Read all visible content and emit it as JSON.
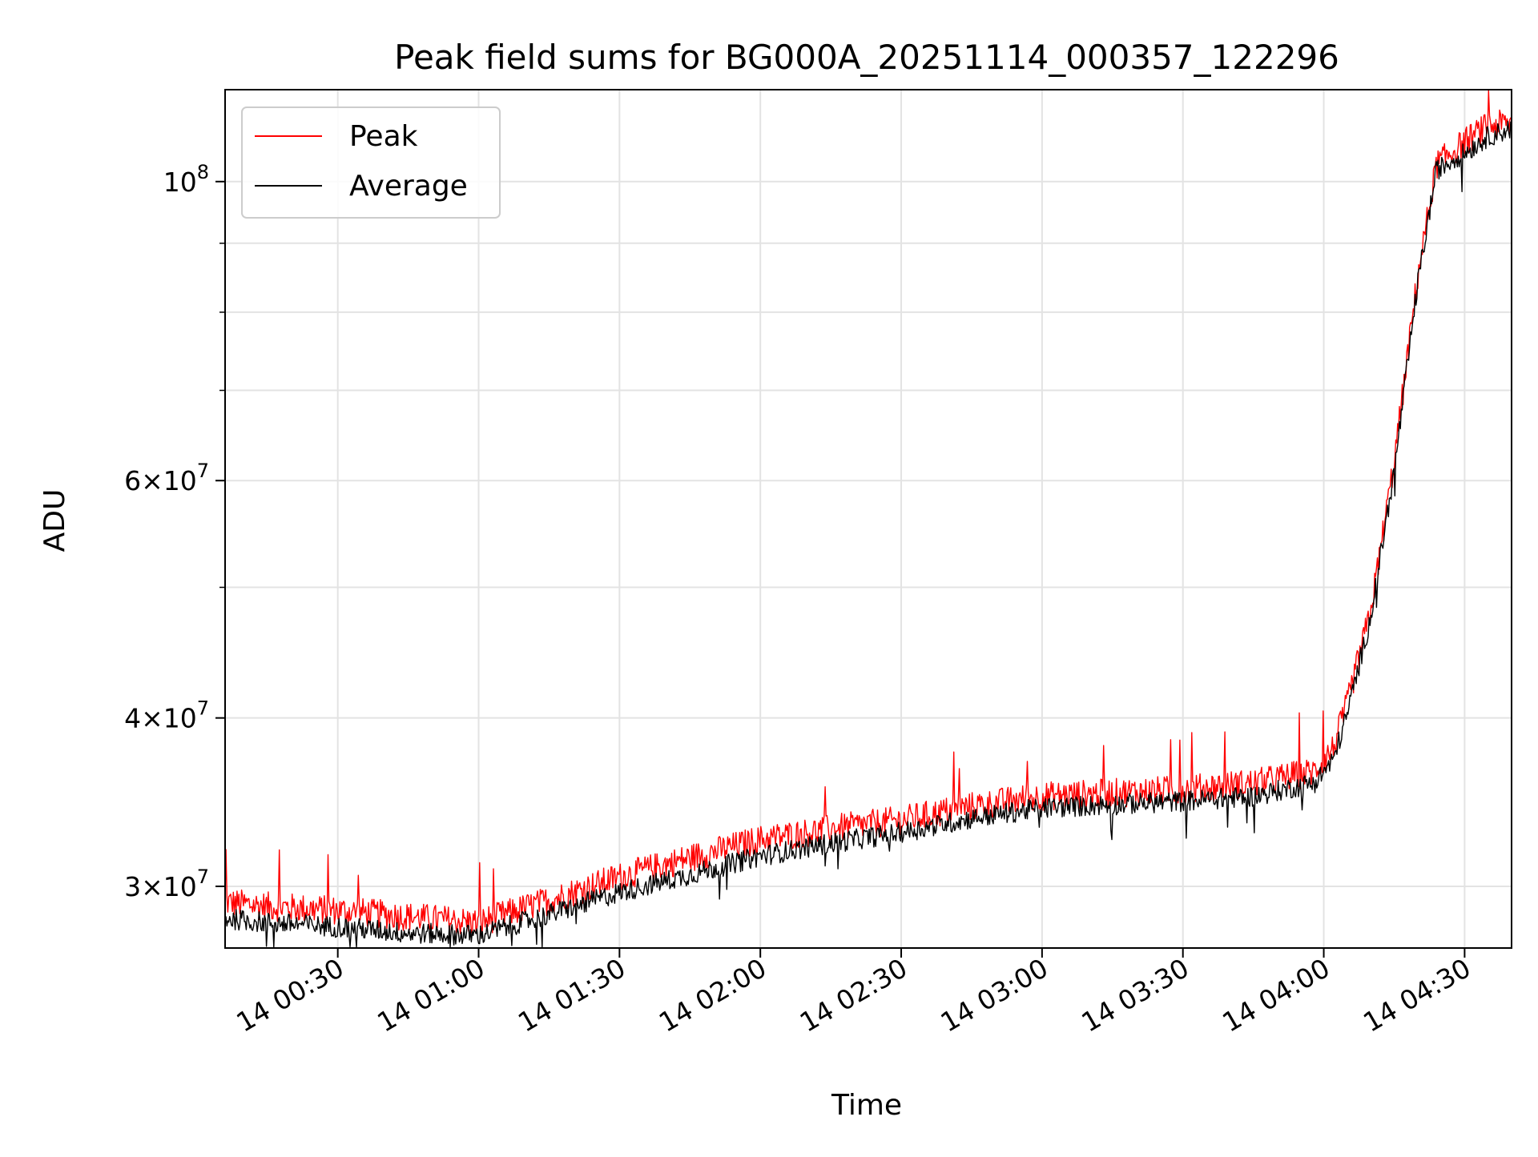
{
  "chart_data": {
    "type": "line",
    "title": "Peak field sums for BG000A_20251114_000357_122296",
    "xlabel": "Time",
    "ylabel": "ADU",
    "yscale": "log",
    "ylim": [
      27000000,
      117000000
    ],
    "xlim": [
      "14 00:06",
      "14 04:40"
    ],
    "x_ticks": [
      {
        "x": "14 00:30",
        "label": "14 00:30"
      },
      {
        "x": "14 01:00",
        "label": "14 01:00"
      },
      {
        "x": "14 01:30",
        "label": "14 01:30"
      },
      {
        "x": "14 02:00",
        "label": "14 02:00"
      },
      {
        "x": "14 02:30",
        "label": "14 02:30"
      },
      {
        "x": "14 03:00",
        "label": "14 03:00"
      },
      {
        "x": "14 03:30",
        "label": "14 03:30"
      },
      {
        "x": "14 04:00",
        "label": "14 04:00"
      },
      {
        "x": "14 04:30",
        "label": "14 04:30"
      }
    ],
    "y_ticks": [
      {
        "value": 30000000,
        "mantissa": "3",
        "exponent": "7"
      },
      {
        "value": 40000000,
        "mantissa": "4",
        "exponent": "7"
      },
      {
        "value": 60000000,
        "mantissa": "6",
        "exponent": "7"
      },
      {
        "value": 100000000,
        "mantissa": "",
        "exponent": "8"
      }
    ],
    "y_minor_ticks": [
      50000000,
      70000000,
      80000000,
      90000000
    ],
    "grid": true,
    "legend_position": "upper-left",
    "series": [
      {
        "name": "Peak",
        "color": "#ff0000",
        "x": [
          "14 00:06",
          "14 00:15",
          "14 00:30",
          "14 00:45",
          "14 01:00",
          "14 01:15",
          "14 01:30",
          "14 01:45",
          "14 02:00",
          "14 02:15",
          "14 02:30",
          "14 02:45",
          "14 03:00",
          "14 03:15",
          "14 03:30",
          "14 03:45",
          "14 03:58",
          "14 04:02",
          "14 04:05",
          "14 04:10",
          "14 04:15",
          "14 04:20",
          "14 04:24",
          "14 04:27",
          "14 04:30",
          "14 04:35",
          "14 04:40"
        ],
        "y": [
          29200000,
          29000000,
          28800000,
          28500000,
          28200000,
          29300000,
          30500000,
          31500000,
          32500000,
          33100000,
          33600000,
          34400000,
          35000000,
          35200000,
          35400000,
          35800000,
          36500000,
          38000000,
          41000000,
          48000000,
          62000000,
          85000000,
          103000000,
          105000000,
          107000000,
          110000000,
          110500000
        ],
        "noise_amplitude": 0.025
      },
      {
        "name": "Average",
        "color": "#000000",
        "x": [
          "14 00:06",
          "14 00:15",
          "14 00:30",
          "14 00:45",
          "14 01:00",
          "14 01:15",
          "14 01:30",
          "14 01:45",
          "14 02:00",
          "14 02:15",
          "14 02:30",
          "14 02:45",
          "14 03:00",
          "14 03:15",
          "14 03:30",
          "14 03:45",
          "14 03:58",
          "14 04:02",
          "14 04:05",
          "14 04:10",
          "14 04:15",
          "14 04:20",
          "14 04:24",
          "14 04:27",
          "14 04:30",
          "14 04:35",
          "14 04:40"
        ],
        "y": [
          28400000,
          28200000,
          28000000,
          27700000,
          27600000,
          28600000,
          29700000,
          30600000,
          31600000,
          32300000,
          32900000,
          33700000,
          34300000,
          34500000,
          34700000,
          35000000,
          35800000,
          37200000,
          40300000,
          47500000,
          61000000,
          84000000,
          102000000,
          103500000,
          105000000,
          108000000,
          109500000
        ],
        "noise_amplitude": 0.018
      }
    ]
  }
}
